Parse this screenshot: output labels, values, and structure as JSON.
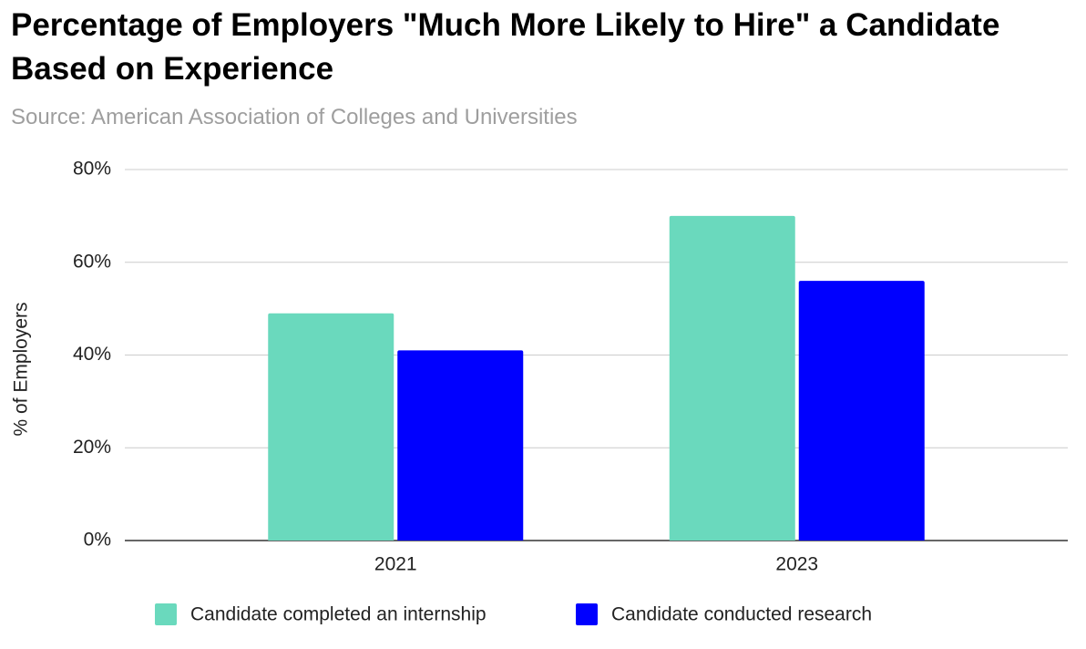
{
  "chart_data": {
    "type": "bar",
    "title": "Percentage of Employers \"Much More Likely to Hire\" a Candidate Based on Experience",
    "subtitle": "Source: American Association of Colleges and Universities",
    "y_label": "% of Employers",
    "categories": [
      "2021",
      "2023"
    ],
    "series": [
      {
        "name": "Candidate completed an internship",
        "color": "#6ad9bd",
        "values": [
          49,
          70
        ]
      },
      {
        "name": "Candidate conducted research",
        "color": "#0000ff",
        "values": [
          41,
          56
        ]
      }
    ],
    "ylim": [
      0,
      80
    ],
    "yticks": [
      {
        "value": 0,
        "label": "0%"
      },
      {
        "value": 20,
        "label": "20%"
      },
      {
        "value": 40,
        "label": "40%"
      },
      {
        "value": 60,
        "label": "60%"
      },
      {
        "value": 80,
        "label": "80%"
      }
    ],
    "grid": true,
    "legend": "bottom"
  }
}
